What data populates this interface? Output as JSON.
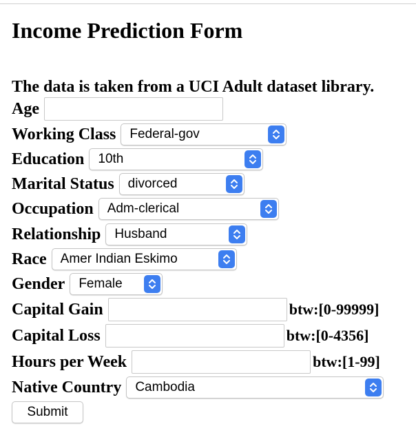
{
  "form": {
    "title": "Income Prediction Form",
    "subtitle": "The data is taken from a UCI Adult dataset library.",
    "submit_label": "Submit"
  },
  "fields": {
    "age": {
      "label": "Age",
      "value": ""
    },
    "working_class": {
      "label": "Working Class",
      "selected": "Federal-gov"
    },
    "education": {
      "label": "Education",
      "selected": "10th"
    },
    "marital_status": {
      "label": "Marital Status",
      "selected": "divorced"
    },
    "occupation": {
      "label": "Occupation",
      "selected": "Adm-clerical"
    },
    "relationship": {
      "label": "Relationship",
      "selected": "Husband"
    },
    "race": {
      "label": "Race",
      "selected": "Amer Indian Eskimo"
    },
    "gender": {
      "label": "Gender",
      "selected": "Female"
    },
    "capital_gain": {
      "label": "Capital Gain",
      "value": "",
      "hint": "btw:[0-99999]"
    },
    "capital_loss": {
      "label": "Capital Loss",
      "value": "",
      "hint": "btw:[0-4356]"
    },
    "hours_per_week": {
      "label": "Hours per Week",
      "value": "",
      "hint": "btw:[1-99]"
    },
    "native_country": {
      "label": "Native Country",
      "selected": "Cambodia"
    }
  },
  "colors": {
    "select_arrow": "#3d7ef0",
    "border": "#c4c4c4"
  },
  "icons": {
    "select_arrow": "up-down-chevron-icon"
  }
}
